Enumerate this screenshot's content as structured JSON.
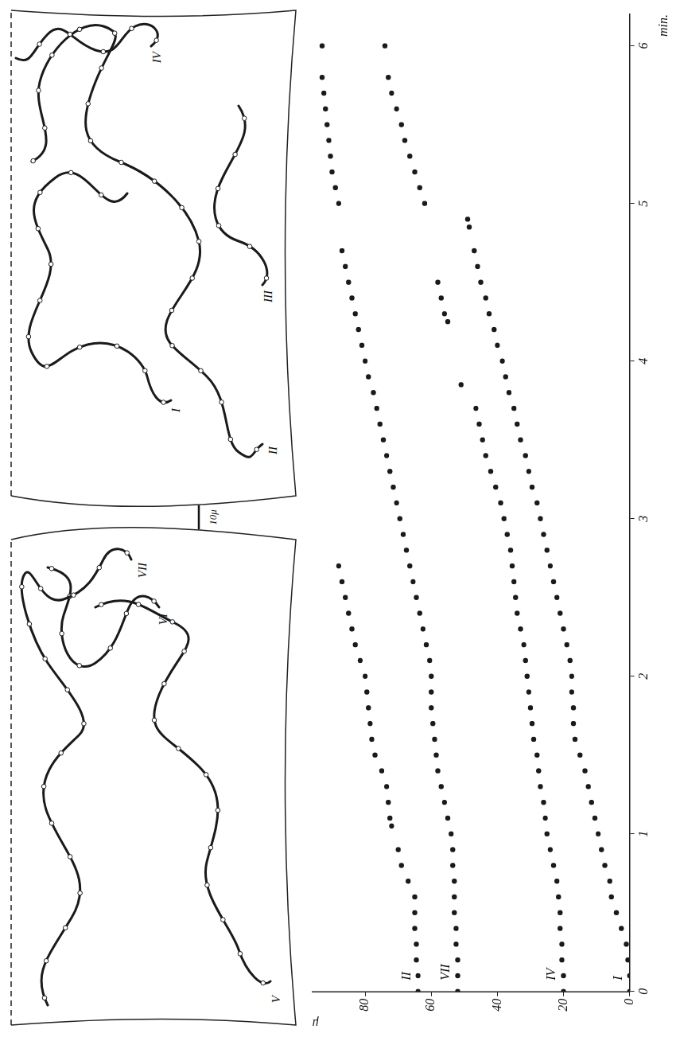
{
  "chart_data": {
    "type": "scatter",
    "x_label": "min.",
    "y_label": "μ",
    "xlim": [
      0,
      6.2
    ],
    "xticks": [
      0,
      1,
      2,
      3,
      4,
      5,
      6
    ],
    "ylim": [
      0,
      96
    ],
    "yticks": [
      0,
      20,
      40,
      60,
      80
    ],
    "grid": false,
    "color": "#1a1a1a",
    "marker": "circle",
    "legend": "none",
    "series": [
      {
        "name": "II",
        "x": [
          0,
          0.1,
          0.2,
          0.3,
          0.4,
          0.5,
          0.6,
          0.7,
          0.8,
          0.9,
          1.05,
          1.1,
          1.2,
          1.3,
          1.4,
          1.5,
          1.6,
          1.7,
          1.8,
          1.9,
          2.0,
          2.1,
          2.2,
          2.3,
          2.4,
          2.5,
          2.6,
          2.7
        ],
        "values": [
          64,
          64,
          64.5,
          64.5,
          65,
          65,
          65,
          67,
          69,
          70,
          72,
          72.5,
          73,
          73.5,
          75,
          77,
          78,
          78.5,
          79,
          79.5,
          80,
          81.5,
          83,
          84,
          85,
          86,
          87,
          88
        ]
      },
      {
        "name": "VII",
        "x": [
          0,
          0.1,
          0.2,
          0.3,
          0.4,
          0.5,
          0.6,
          0.7,
          0.8,
          0.9,
          1.0,
          1.1,
          1.2,
          1.3,
          1.4,
          1.5,
          1.6,
          1.7,
          1.8,
          1.9,
          2.0,
          2.1,
          2.2,
          2.3,
          2.4,
          2.5,
          2.6,
          2.7,
          2.8,
          2.9,
          3.0,
          3.1,
          3.2,
          3.3,
          3.4,
          3.5,
          3.6,
          3.7,
          3.8,
          3.9,
          4.0,
          4.1,
          4.2,
          4.3,
          4.4,
          4.5,
          4.6,
          4.7,
          5.0,
          5.1,
          5.2,
          5.3,
          5.4,
          5.5,
          5.6,
          5.7,
          5.8,
          6.0
        ],
        "values": [
          52,
          52,
          52,
          52.5,
          52.5,
          53,
          53,
          53,
          53.5,
          53.5,
          54,
          55,
          56,
          57,
          58,
          58.5,
          59,
          59.5,
          60,
          60,
          60,
          60.5,
          61.5,
          62.5,
          63.5,
          64.5,
          65.5,
          66.5,
          67.5,
          68.5,
          69.5,
          70.5,
          71.5,
          72.5,
          73.5,
          74.5,
          75.5,
          76.5,
          77.5,
          79,
          80,
          81,
          82,
          83,
          84,
          85,
          86,
          87,
          88,
          89,
          90,
          90.5,
          91,
          91.5,
          92,
          92.5,
          93,
          93
        ]
      },
      {
        "name": "IV",
        "x": [
          0,
          0.1,
          0.2,
          0.3,
          0.4,
          0.5,
          0.6,
          0.7,
          0.8,
          0.9,
          1.0,
          1.1,
          1.2,
          1.3,
          1.4,
          1.5,
          1.6,
          1.7,
          1.8,
          1.9,
          2.0,
          2.1,
          2.2,
          2.3,
          2.4,
          2.5,
          2.6,
          2.7,
          2.8,
          2.9,
          3.0,
          3.1,
          3.2,
          3.3,
          3.4,
          3.5,
          3.6,
          3.7,
          3.85,
          4.25,
          4.3,
          4.4,
          4.5,
          5.0,
          5.1,
          5.2,
          5.3,
          5.4,
          5.5,
          5.6,
          5.7,
          5.8,
          6.0
        ],
        "values": [
          20,
          20,
          20.5,
          20.5,
          21,
          21,
          21.5,
          22,
          23,
          24,
          25,
          25.5,
          26,
          27,
          27.5,
          28,
          29,
          29.5,
          30,
          30.5,
          31,
          31.5,
          32,
          33,
          34,
          34.5,
          35,
          35.5,
          36,
          37,
          38,
          39,
          40.5,
          42,
          43.5,
          44.5,
          45.5,
          46.5,
          51,
          55,
          56,
          57,
          58,
          62,
          63.5,
          65,
          66.5,
          68,
          69,
          70.5,
          72,
          73,
          74
        ]
      },
      {
        "name": "I",
        "x": [
          0,
          0.1,
          0.2,
          0.3,
          0.4,
          0.5,
          0.6,
          0.7,
          0.8,
          0.9,
          1.0,
          1.1,
          1.2,
          1.3,
          1.4,
          1.5,
          1.6,
          1.7,
          1.8,
          1.9,
          2.0,
          2.1,
          2.2,
          2.3,
          2.4,
          2.5,
          2.6,
          2.7,
          2.8,
          2.9,
          3.0,
          3.1,
          3.2,
          3.3,
          3.4,
          3.5,
          3.6,
          3.7,
          3.8,
          3.9,
          4.0,
          4.1,
          4.2,
          4.3,
          4.4,
          4.5,
          4.6,
          4.7,
          4.85,
          4.9
        ],
        "values": [
          0,
          0,
          0.5,
          1,
          2.5,
          4,
          5.5,
          6,
          7.5,
          8.5,
          9.5,
          10.5,
          11.5,
          12.5,
          13.5,
          15,
          16.5,
          17,
          17,
          17.5,
          17.5,
          18,
          19,
          20,
          21,
          22,
          23,
          24,
          25,
          26,
          27,
          28,
          29.5,
          30.5,
          31.5,
          33,
          34,
          35,
          36.5,
          37.5,
          38.5,
          40,
          41,
          42.5,
          43.5,
          45,
          46,
          47,
          48.5,
          49
        ]
      }
    ]
  },
  "trajectory_panels": [
    {
      "labels": [
        "V",
        "VI",
        "VII"
      ]
    },
    {
      "labels": [
        "I",
        "II",
        "III",
        "IV"
      ]
    }
  ],
  "scale_bar": "10μ"
}
